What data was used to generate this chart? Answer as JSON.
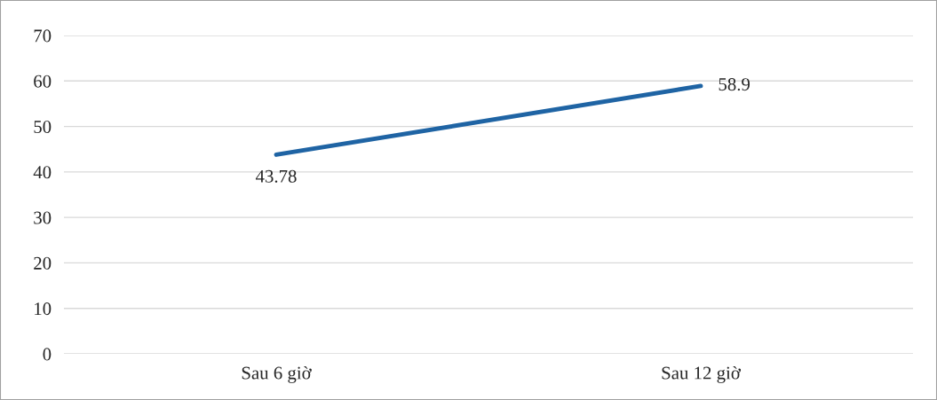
{
  "chart_data": {
    "type": "line",
    "categories": [
      "Sau 6 giờ",
      "Sau 12 giờ"
    ],
    "series": [
      {
        "color": "#1f64a4",
        "values": [
          43.78,
          58.9
        ]
      }
    ],
    "ylim": [
      0,
      70
    ],
    "yticks": [
      0,
      10,
      20,
      30,
      40,
      50,
      60,
      70
    ],
    "grid": "y",
    "data_labels": true,
    "marker": "none",
    "line_style": "solid"
  }
}
